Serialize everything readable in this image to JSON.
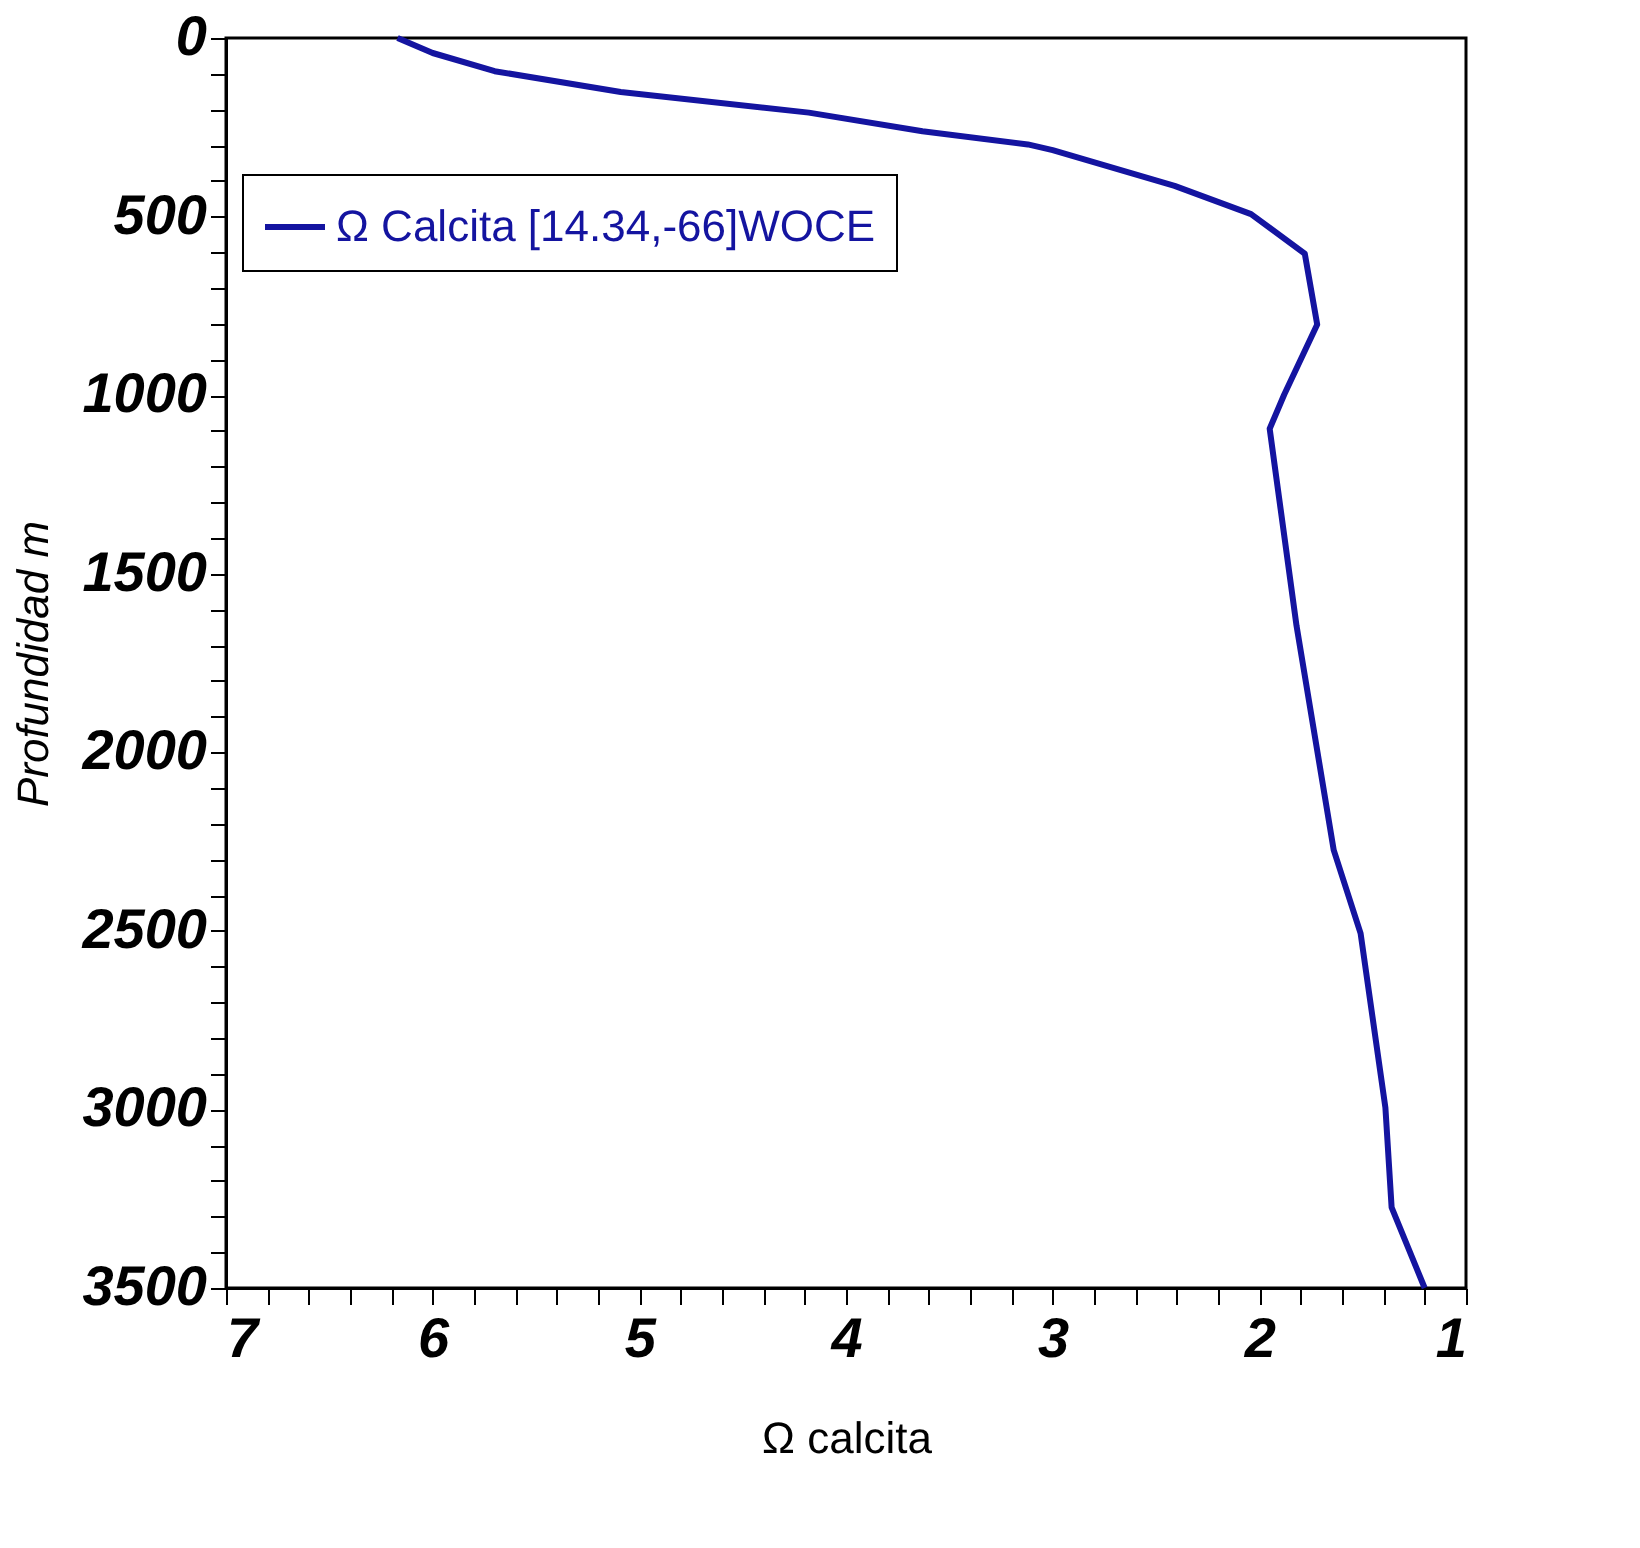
{
  "chart_data": {
    "type": "line",
    "xlabel": "Ω calcita",
    "ylabel": "Profundidad m",
    "xlim": [
      7,
      1
    ],
    "ylim": [
      3500,
      0
    ],
    "xticks": [
      7,
      {
        "value": 6.8,
        "label": null
      },
      {
        "value": 6.6,
        "label": null
      },
      {
        "value": 6.4,
        "label": null
      },
      {
        "value": 6.2,
        "label": null
      },
      6,
      {
        "value": 5.8,
        "label": null
      },
      {
        "value": 5.6,
        "label": null
      },
      {
        "value": 5.4,
        "label": null
      },
      {
        "value": 5.2,
        "label": null
      },
      5,
      {
        "value": 4.8,
        "label": null
      },
      {
        "value": 4.6,
        "label": null
      },
      {
        "value": 4.4,
        "label": null
      },
      {
        "value": 4.2,
        "label": null
      },
      4,
      {
        "value": 3.8,
        "label": null
      },
      {
        "value": 3.6,
        "label": null
      },
      {
        "value": 3.4,
        "label": null
      },
      {
        "value": 3.2,
        "label": null
      },
      3,
      {
        "value": 2.8,
        "label": null
      },
      {
        "value": 2.6,
        "label": null
      },
      {
        "value": 2.4,
        "label": null
      },
      {
        "value": 2.2,
        "label": null
      },
      2,
      {
        "value": 1.8,
        "label": null
      },
      {
        "value": 1.6,
        "label": null
      },
      {
        "value": 1.4,
        "label": null
      },
      {
        "value": 1.2,
        "label": null
      },
      1
    ],
    "yticks": [
      0,
      {
        "value": 100,
        "label": null
      },
      {
        "value": 200,
        "label": null
      },
      {
        "value": 300,
        "label": null
      },
      {
        "value": 400,
        "label": null
      },
      500,
      {
        "value": 600,
        "label": null
      },
      {
        "value": 700,
        "label": null
      },
      {
        "value": 800,
        "label": null
      },
      {
        "value": 900,
        "label": null
      },
      1000,
      {
        "value": 1100,
        "label": null
      },
      {
        "value": 1200,
        "label": null
      },
      {
        "value": 1300,
        "label": null
      },
      {
        "value": 1400,
        "label": null
      },
      1500,
      {
        "value": 1600,
        "label": null
      },
      {
        "value": 1700,
        "label": null
      },
      {
        "value": 1800,
        "label": null
      },
      {
        "value": 1900,
        "label": null
      },
      2000,
      {
        "value": 2100,
        "label": null
      },
      {
        "value": 2200,
        "label": null
      },
      {
        "value": 2300,
        "label": null
      },
      {
        "value": 2400,
        "label": null
      },
      2500,
      {
        "value": 2600,
        "label": null
      },
      {
        "value": 2700,
        "label": null
      },
      {
        "value": 2800,
        "label": null
      },
      {
        "value": 2900,
        "label": null
      },
      3000,
      {
        "value": 3100,
        "label": null
      },
      {
        "value": 3200,
        "label": null
      },
      {
        "value": 3300,
        "label": null
      },
      {
        "value": 3400,
        "label": null
      },
      3500
    ],
    "grid": false,
    "legend": "top left",
    "marker": "none",
    "line_style": "solid",
    "series": [
      {
        "name": "Ω Calcita [14.34,-66]WOCE",
        "color": "#1414a0",
        "x": [
          6.17,
          6.0,
          5.7,
          5.09,
          4.18,
          3.63,
          3.12,
          3.0,
          2.41,
          2.04,
          1.78,
          1.72,
          1.88,
          1.95,
          1.82,
          1.64,
          1.51,
          1.39,
          1.36,
          1.2
        ],
        "values": [
          0,
          42,
          93,
          151,
          209,
          261,
          298,
          314,
          414,
          493,
          604,
          802,
          999,
          1094,
          1646,
          2274,
          2507,
          2995,
          3274,
          3500
        ]
      }
    ]
  }
}
